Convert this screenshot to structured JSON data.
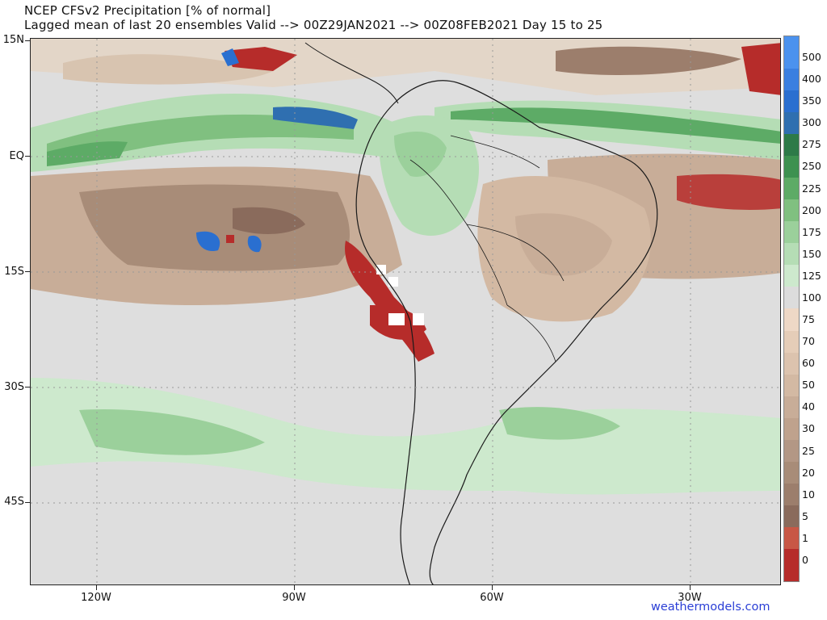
{
  "header": {
    "title_line1": "NCEP CFSv2 Precipitation [% of normal]",
    "title_line2": "Lagged mean of last 20 ensembles Valid --> 00Z29JAN2021 --> 00Z08FEB2021  Day 15 to 25"
  },
  "axes": {
    "lat_labels": [
      "15N",
      "EQ",
      "15S",
      "30S",
      "45S"
    ],
    "lon_labels": [
      "120W",
      "90W",
      "60W",
      "30W"
    ]
  },
  "legend": {
    "levels": [
      "0",
      "1",
      "5",
      "10",
      "20",
      "25",
      "30",
      "40",
      "50",
      "60",
      "70",
      "75",
      "100",
      "125",
      "150",
      "175",
      "200",
      "225",
      "250",
      "275",
      "300",
      "350",
      "400",
      "500"
    ],
    "colors": [
      "#b62c2a",
      "#c85745",
      "#8a6b5c",
      "#9c7e6c",
      "#a88c78",
      "#b39785",
      "#bfa28d",
      "#c8ad98",
      "#d3b9a3",
      "#dcc3ae",
      "#e5cdb8",
      "#eed8c6",
      "#dcdcdc",
      "#cde9cd",
      "#b5ddb5",
      "#9bd09b",
      "#80c080",
      "#5dab66",
      "#3d9150",
      "#2d7a48",
      "#2f6fb0",
      "#2a6fd0",
      "#3a7fe0",
      "#4b92ee"
    ]
  },
  "credit": "weathermodels.com"
}
